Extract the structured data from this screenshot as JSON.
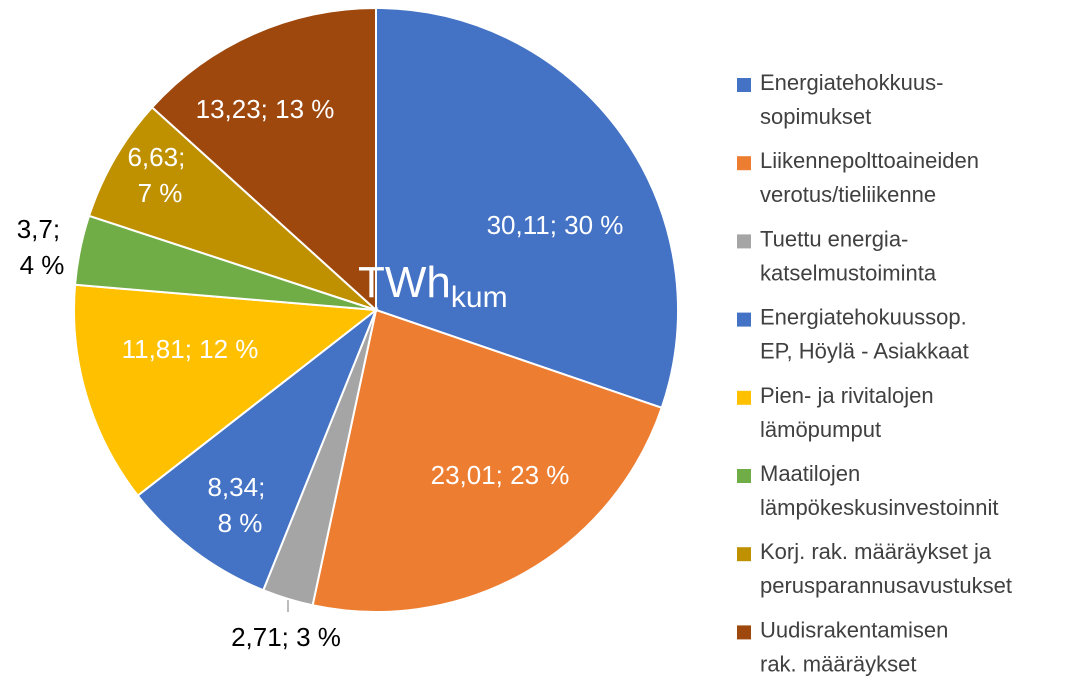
{
  "chart_data": {
    "type": "pie",
    "center_label": "TWh",
    "center_label_sub": "kum",
    "categories": [
      "Energiatehokkuus-sopimukset",
      "Liikennepolttoaineiden verotus/tieliikenne",
      "Tuettu energia-katselmustoiminta",
      "Energiatehokuussop. EP, Höylä - Asiakkaat",
      "Pien- ja rivitalojen lämöpumput",
      "Maatilojen lämpökeskusinvestoinnit",
      "Korj. rak. määräykset ja perusparannusavustukset",
      "Uudisrakentamisen rak. määräykset"
    ],
    "values": [
      30.11,
      23.01,
      2.71,
      8.34,
      11.81,
      3.7,
      6.63,
      13.23
    ],
    "value_labels": [
      "30,11; 30 %",
      "23,01; 23 %",
      "2,71; 3 %",
      "8,34; 8 %",
      "11,81; 12 %",
      "3,7; 4 %",
      "6,63; 7 %",
      "13,23; 13 %"
    ],
    "colors": [
      "#4472c4",
      "#ed7d31",
      "#a5a5a5",
      "#4472c4",
      "#ffc000",
      "#70ad47",
      "#bf9000",
      "#9e480e"
    ],
    "legend": "right"
  }
}
